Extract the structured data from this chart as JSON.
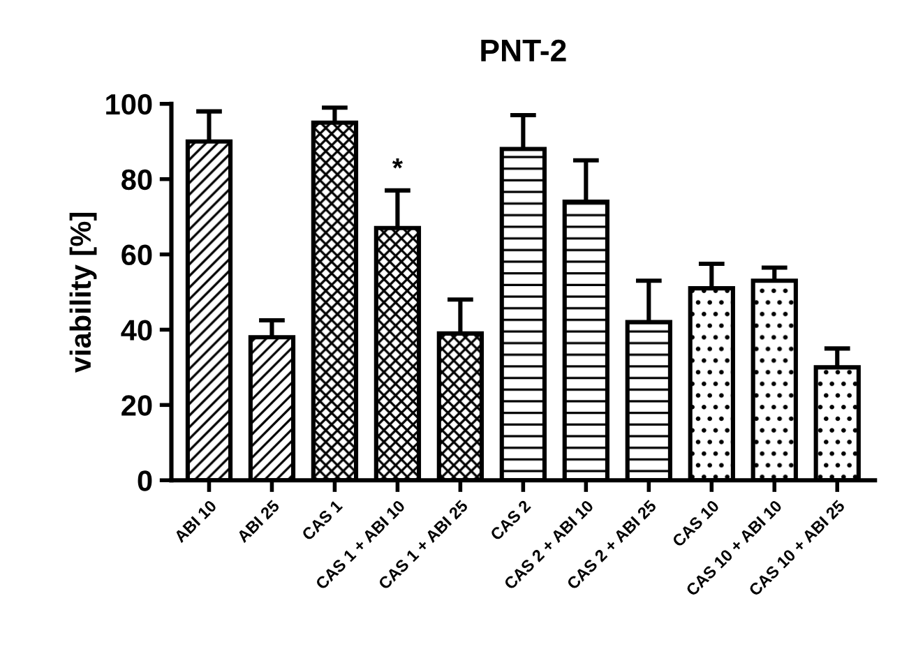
{
  "chart_data": {
    "type": "bar",
    "title": "PNT-2",
    "ylabel": "viability [%]",
    "categories": [
      "ABI 10",
      "ABI 25",
      "CAS 1",
      "CAS 1 + ABI 10",
      "CAS 1 + ABI 25",
      "CAS 2",
      "CAS 2 + ABI 10",
      "CAS 2 + ABI 25",
      "CAS 10",
      "CAS 10 + ABI 10",
      "CAS 10 + ABI 25"
    ],
    "values": [
      90,
      38,
      95,
      67,
      39,
      88,
      74,
      42,
      51,
      53,
      30
    ],
    "errors": [
      [
        90,
        98
      ],
      [
        38,
        42.5
      ],
      [
        95,
        99
      ],
      [
        67,
        77
      ],
      [
        39,
        48
      ],
      [
        88,
        97
      ],
      [
        74,
        85
      ],
      [
        42,
        53
      ],
      [
        51,
        57.5
      ],
      [
        53,
        56.5
      ],
      [
        30,
        35
      ]
    ],
    "color": "#000000",
    "ylim": [
      0,
      100
    ],
    "yticks": [
      0,
      20,
      40,
      60,
      80,
      100
    ],
    "grid": false,
    "annotations": [
      "*"
    ]
  }
}
